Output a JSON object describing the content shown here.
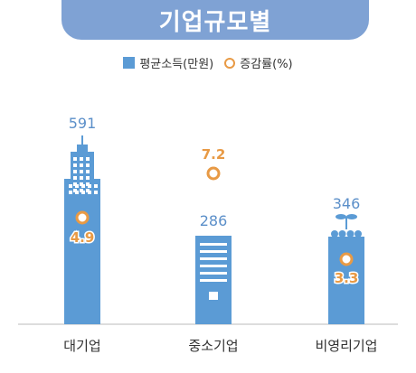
{
  "title": "기업규모별",
  "chart_data": {
    "type": "bar",
    "title": "기업규모별",
    "categories": [
      "대기업",
      "중소기업",
      "비영리기업"
    ],
    "series": [
      {
        "name": "평균소득(만원)",
        "type": "bar",
        "values": [
          591,
          286,
          346
        ]
      },
      {
        "name": "증감률(%)",
        "type": "scatter",
        "values": [
          4.9,
          7.2,
          3.3
        ]
      }
    ],
    "value_labels": {
      "income": [
        "591",
        "286",
        "346"
      ],
      "rate": [
        "4.9",
        "7.2",
        "3.3"
      ]
    },
    "colors": {
      "bar": "#5b9bd5",
      "marker": "#e89a45",
      "income_label": "#5b8fc9",
      "rate_label": "#e89a45",
      "title_bg": "#7fa2d4"
    },
    "legend_position": "top-center",
    "grid": false
  }
}
